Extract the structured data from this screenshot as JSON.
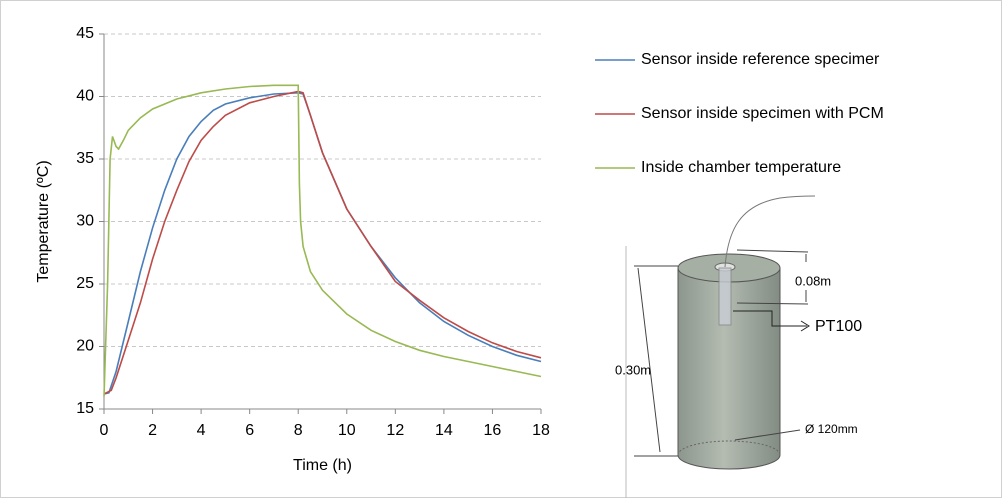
{
  "chart_data": {
    "type": "line",
    "x_label": "Time (h)",
    "y_label": "Temperature (ºC)",
    "xlim": [
      0,
      18
    ],
    "xticks": [
      0,
      2,
      4,
      6,
      8,
      10,
      12,
      14,
      16,
      18
    ],
    "ylim": [
      15,
      45
    ],
    "yticks": [
      15,
      20,
      25,
      30,
      35,
      40,
      45
    ],
    "grid": true,
    "series": [
      {
        "name": "Sensor inside reference specimer",
        "color": "#4a7ebb",
        "x": [
          0,
          0.2,
          0.5,
          1,
          1.5,
          2,
          2.5,
          3,
          3.5,
          4,
          4.5,
          5,
          6,
          7,
          8,
          8.2,
          8.5,
          9,
          10,
          11,
          12,
          13,
          14,
          15,
          16,
          17,
          18
        ],
        "values": [
          16.2,
          16.3,
          18,
          22,
          26,
          29.5,
          32.5,
          35,
          36.8,
          38,
          38.9,
          39.4,
          39.9,
          40.2,
          40.3,
          40.2,
          38.5,
          35.5,
          31,
          28,
          25.5,
          23.5,
          22,
          20.9,
          20,
          19.3,
          18.8
        ]
      },
      {
        "name": "Sensor inside specimen with PCM",
        "color": "#be4b48",
        "x": [
          0,
          0.3,
          0.5,
          1,
          1.5,
          2,
          2.5,
          3,
          3.5,
          4,
          4.5,
          5,
          6,
          7,
          8,
          8.2,
          8.5,
          9,
          10,
          11,
          12,
          13,
          14,
          15,
          16,
          17,
          18
        ],
        "values": [
          16.2,
          16.5,
          17.5,
          20.5,
          23.5,
          27,
          30,
          32.5,
          34.8,
          36.5,
          37.6,
          38.5,
          39.5,
          40,
          40.4,
          40.3,
          38.5,
          35.5,
          31,
          28,
          25.2,
          23.7,
          22.3,
          21.2,
          20.3,
          19.6,
          19.1
        ]
      },
      {
        "name": "Inside chamber temperature",
        "color": "#98b954",
        "x": [
          0,
          0.15,
          0.25,
          0.35,
          0.5,
          0.6,
          0.8,
          1,
          1.5,
          2,
          3,
          4,
          5,
          6,
          7,
          8,
          8.05,
          8.1,
          8.2,
          8.5,
          9,
          10,
          11,
          12,
          13,
          14,
          15,
          16,
          17,
          18
        ],
        "values": [
          16,
          25,
          35,
          36.8,
          36,
          35.8,
          36.5,
          37.3,
          38.3,
          39,
          39.8,
          40.3,
          40.6,
          40.8,
          40.9,
          40.9,
          33,
          30,
          28,
          26,
          24.5,
          22.6,
          21.3,
          20.4,
          19.7,
          19.2,
          18.8,
          18.4,
          18,
          17.6
        ]
      }
    ],
    "diagram_labels": [
      "0.08m",
      "PT100",
      "0.30m",
      "Ø 120mm"
    ]
  }
}
